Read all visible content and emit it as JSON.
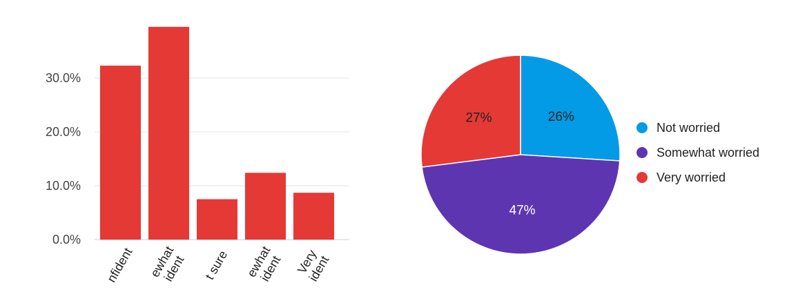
{
  "chart_data": [
    {
      "type": "bar",
      "categories": [
        "Not confident",
        "Somewhat not confident",
        "Not sure",
        "Somewhat confident",
        "Very confident"
      ],
      "visible_category_text": [
        [
          "nfident"
        ],
        [
          "ewhat",
          "ident"
        ],
        [
          "t sure"
        ],
        [
          "ewhat",
          "ident"
        ],
        [
          "Very",
          "ident"
        ]
      ],
      "values": [
        32.3,
        39.5,
        7.5,
        12.4,
        8.7
      ],
      "color": "#e53935",
      "ylim": [
        0,
        40
      ],
      "yticks": [
        0,
        10,
        20,
        30
      ],
      "ytick_labels": [
        "0.0%",
        "10.0%",
        "20.0%",
        "30.0%"
      ],
      "grid": true
    },
    {
      "type": "pie",
      "slices": [
        {
          "label": "Not worried",
          "value": 26,
          "color": "#039be5",
          "text": "26%"
        },
        {
          "label": "Somewhat worried",
          "value": 47,
          "color": "#5e35b1",
          "text": "47%"
        },
        {
          "label": "Very worried",
          "value": 27,
          "color": "#e53935",
          "text": "27%"
        }
      ],
      "legend_position": "right"
    }
  ]
}
